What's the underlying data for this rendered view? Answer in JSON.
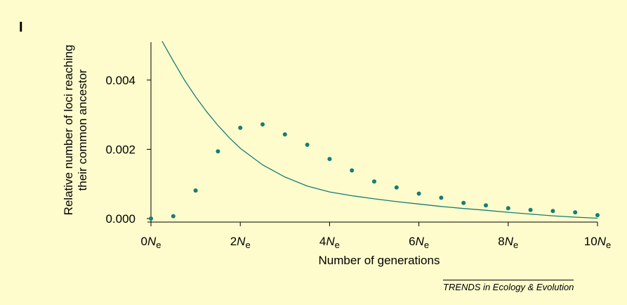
{
  "panel_label": "I",
  "source": "TRENDS in Ecology & Evolution",
  "colors": {
    "background": "#fefccc",
    "series": "#167d73",
    "axis": "#000000"
  },
  "chart_data": {
    "type": "scatter",
    "xlabel": "Number of generations",
    "ylabel_lines": [
      "Relative number of loci reaching",
      "their common ancestor"
    ],
    "xlim": [
      0,
      10
    ],
    "ylim": [
      0,
      0.0055
    ],
    "x_ticks": [
      {
        "value": 0,
        "prefix": "0",
        "italic": "N",
        "sub": "e"
      },
      {
        "value": 2,
        "prefix": "2",
        "italic": "N",
        "sub": "e"
      },
      {
        "value": 4,
        "prefix": "4",
        "italic": "N",
        "sub": "e"
      },
      {
        "value": 6,
        "prefix": "6",
        "italic": "N",
        "sub": "e"
      },
      {
        "value": 8,
        "prefix": "8",
        "italic": "N",
        "sub": "e"
      },
      {
        "value": 10,
        "prefix": "10",
        "italic": "N",
        "sub": "e"
      }
    ],
    "y_ticks": [
      {
        "value": 0.0,
        "label": "0.000"
      },
      {
        "value": 0.002,
        "label": "0.002"
      },
      {
        "value": 0.004,
        "label": "0.004"
      }
    ],
    "series": [
      {
        "kind": "points",
        "x": [
          0,
          0.5,
          1.0,
          1.5,
          2.0,
          2.5,
          3.0,
          3.5,
          4.0,
          4.5,
          5.0,
          5.5,
          6.0,
          6.5,
          7.0,
          7.5,
          8.0,
          8.5,
          9.0,
          9.5,
          10.0
        ],
        "y": [
          0.0,
          7e-05,
          0.00081,
          0.00194,
          0.00262,
          0.00272,
          0.00243,
          0.00213,
          0.00172,
          0.00139,
          0.00107,
          0.0009,
          0.00072,
          0.0006,
          0.00045,
          0.00038,
          0.0003,
          0.00025,
          0.00022,
          0.00018,
          0.0001
        ]
      },
      {
        "kind": "curve",
        "x": [
          0.25,
          0.5,
          0.75,
          1.0,
          1.25,
          1.5,
          1.75,
          2.0,
          2.5,
          3.0,
          3.5,
          4.0,
          4.5,
          5.0,
          5.5,
          6.0,
          6.5,
          7.0,
          7.5,
          8.0,
          8.5,
          9.0,
          9.5,
          10.0
        ],
        "y": [
          0.00512,
          0.00455,
          0.004,
          0.00352,
          0.00308,
          0.00269,
          0.00234,
          0.00203,
          0.00155,
          0.0012,
          0.00094,
          0.00077,
          0.00066,
          0.00057,
          0.00049,
          0.00042,
          0.00035,
          0.00029,
          0.00024,
          0.00018,
          0.00013,
          8e-05,
          4e-05,
          1e-05
        ]
      }
    ]
  }
}
